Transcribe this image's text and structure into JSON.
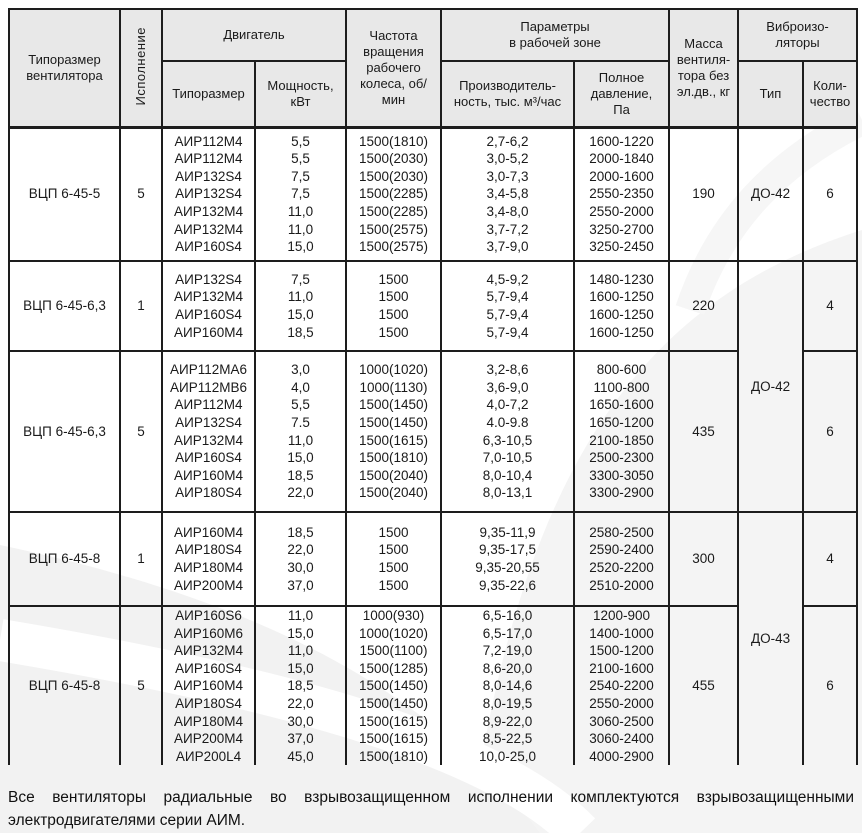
{
  "colors": {
    "header_bg": "#e8e8e8",
    "border": "#1d1d1d",
    "text": "#1a1a1a"
  },
  "table": {
    "header": {
      "fan": "Типоразмер\nвентилятора",
      "execution": "Исполнение",
      "motor_group": "Двигатель",
      "motor_type": "Типоразмер",
      "power": "Мощность,\nкВт",
      "speed": "Частота\nвращения\nрабочего\nколеса, об/\nмин",
      "params_group": "Параметры\nв рабочей зоне",
      "capacity": "Производитель-\nность, тыс. м³/час",
      "pressure": "Полное\nдавление,\nПа",
      "mass": "Масса\nвентиля-\nтора без\nэл.дв., кг",
      "vibro_group": "Виброизо-\nляторы",
      "vibro_type": "Тип",
      "vibro_qty": "Коли-\nчество"
    },
    "blocks": [
      {
        "fan": "ВЦП 6-45-5",
        "execution": "5",
        "mass": "190",
        "vibro_type": "ДО-42",
        "vibro_span": 1,
        "qty": "6",
        "rows": [
          [
            "АИР112М4",
            "5,5",
            "1500(1810)",
            "2,7-6,2",
            "1600-1220"
          ],
          [
            "АИР112М4",
            "5,5",
            "1500(2030)",
            "3,0-5,2",
            "2000-1840"
          ],
          [
            "АИР132S4",
            "7,5",
            "1500(2030)",
            "3,0-7,3",
            "2000-1600"
          ],
          [
            "АИР132S4",
            "7,5",
            "1500(2285)",
            "3,4-5,8",
            "2550-2350"
          ],
          [
            "АИР132М4",
            "11,0",
            "1500(2285)",
            "3,4-8,0",
            "2550-2000"
          ],
          [
            "АИР132М4",
            "11,0",
            "1500(2575)",
            "3,7-7,2",
            "3250-2700"
          ],
          [
            "АИР160S4",
            "15,0",
            "1500(2575)",
            "3,7-9,0",
            "3250-2450"
          ]
        ]
      },
      {
        "fan": "ВЦП 6-45-6,3",
        "execution": "1",
        "mass": "220",
        "vibro_type": "ДО-42",
        "vibro_span": 2,
        "qty": "4",
        "rows": [
          [
            "АИР132S4",
            "7,5",
            "1500",
            "4,5-9,2",
            "1480-1230"
          ],
          [
            "АИР132М4",
            "11,0",
            "1500",
            "5,7-9,4",
            "1600-1250"
          ],
          [
            "АИР160S4",
            "15,0",
            "1500",
            "5,7-9,4",
            "1600-1250"
          ],
          [
            "АИР160М4",
            "18,5",
            "1500",
            "5,7-9,4",
            "1600-1250"
          ]
        ]
      },
      {
        "fan": "ВЦП 6-45-6,3",
        "execution": "5",
        "mass": "435",
        "vibro_type": null,
        "qty": "6",
        "rows": [
          [
            "АИР112МА6",
            "3,0",
            "1000(1020)",
            "3,2-8,6",
            "800-600"
          ],
          [
            "АИР112МВ6",
            "4,0",
            "1000(1130)",
            "3,6-9,0",
            "1100-800"
          ],
          [
            "АИР112М4",
            "5,5",
            "1500(1450)",
            "4,0-7,2",
            "1650-1600"
          ],
          [
            "АИР132S4",
            "7.5",
            "1500(1450)",
            "4.0-9.8",
            "1650-1200"
          ],
          [
            "АИР132М4",
            "11,0",
            "1500(1615)",
            "6,3-10,5",
            "2100-1850"
          ],
          [
            "АИР160S4",
            "15,0",
            "1500(1810)",
            "7,0-10,5",
            "2500-2300"
          ],
          [
            "АИР160М4",
            "18,5",
            "1500(2040)",
            "8,0-10,4",
            "3300-3050"
          ],
          [
            "АИР180S4",
            "22,0",
            "1500(2040)",
            "8,0-13,1",
            "3300-2900"
          ]
        ]
      },
      {
        "fan": "ВЦП 6-45-8",
        "execution": "1",
        "mass": "300",
        "vibro_type": "ДО-43",
        "vibro_span": 2,
        "qty": "4",
        "rows": [
          [
            "АИР160М4",
            "18,5",
            "1500",
            "9,35-11,9",
            "2580-2500"
          ],
          [
            "АИР180S4",
            "22,0",
            "1500",
            "9,35-17,5",
            "2590-2400"
          ],
          [
            "АИР180М4",
            "30,0",
            "1500",
            "9,35-20,55",
            "2520-2200"
          ],
          [
            "АИР200М4",
            "37,0",
            "1500",
            "9,35-22,6",
            "2510-2000"
          ]
        ]
      },
      {
        "fan": "ВЦП 6-45-8",
        "execution": "5",
        "mass": "455",
        "vibro_type": null,
        "qty": "6",
        "rows": [
          [
            "АИР160S6",
            "11,0",
            "1000(930)",
            "6,5-16,0",
            "1200-900"
          ],
          [
            "АИР160М6",
            "15,0",
            "1000(1020)",
            "6,5-17,0",
            "1400-1000"
          ],
          [
            "АИР132М4",
            "11,0",
            "1500(1100)",
            "7,2-19,0",
            "1500-1200"
          ],
          [
            "АИР160S4",
            "15,0",
            "1500(1285)",
            "8,6-20,0",
            "2100-1600"
          ],
          [
            "АИР160М4",
            "18,5",
            "1500(1450)",
            "8,0-14,6",
            "2540-2200"
          ],
          [
            "АИР180S4",
            "22,0",
            "1500(1450)",
            "8,0-19,5",
            "2550-2000"
          ],
          [
            "АИР180М4",
            "30,0",
            "1500(1615)",
            "8,9-22,0",
            "3060-2500"
          ],
          [
            "АИР200М4",
            "37,0",
            "1500(1615)",
            "8,5-22,5",
            "3060-2400"
          ],
          [
            "АИР200L4",
            "45,0",
            "1500(1810)",
            "10,0-25,0",
            "4000-2900"
          ]
        ]
      }
    ]
  },
  "footnote": {
    "line1": "Все вентиляторы радиальные во взрывозащищенном исполнении комплектуются взрывозащищенными",
    "line2": "электродвигателями серии АИМ."
  }
}
